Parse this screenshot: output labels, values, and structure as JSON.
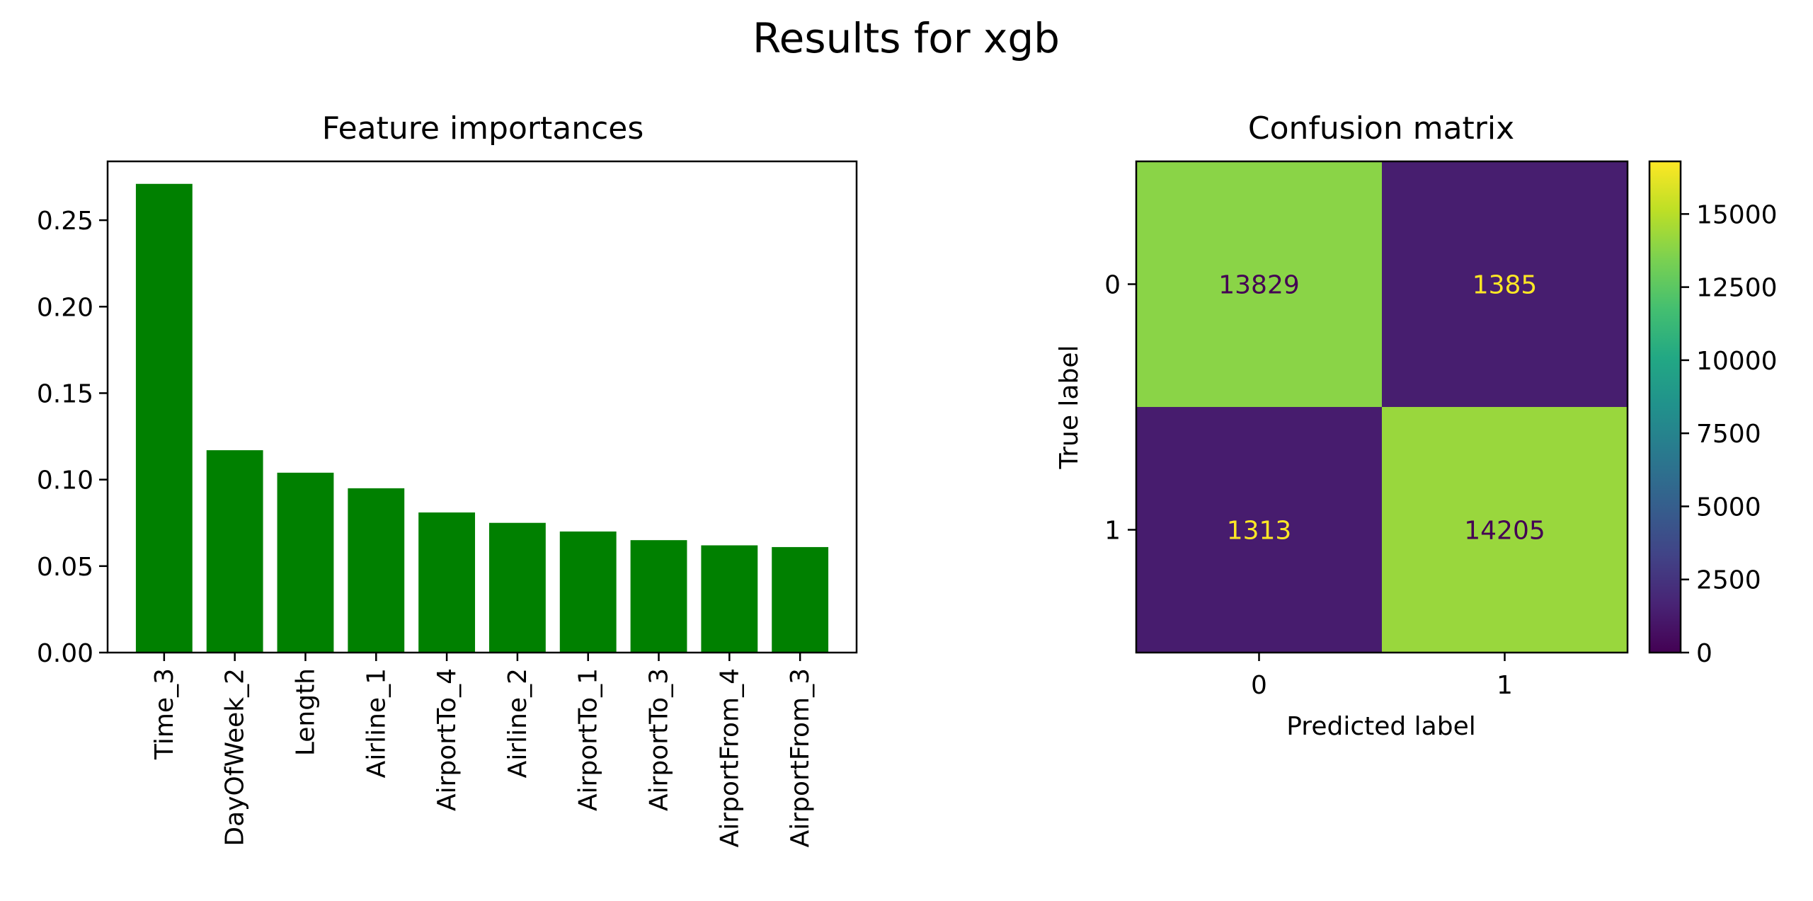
{
  "figure": {
    "suptitle": "Results for xgb"
  },
  "chart_data": [
    {
      "type": "bar",
      "title": "Feature importances",
      "xlabel": "",
      "ylabel": "",
      "categories": [
        "Time_3",
        "DayOfWeek_2",
        "Length",
        "Airline_1",
        "AirportTo_4",
        "Airline_2",
        "AirportTo_1",
        "AirportTo_3",
        "AirportFrom_4",
        "AirportFrom_3"
      ],
      "values": [
        0.271,
        0.117,
        0.104,
        0.095,
        0.081,
        0.075,
        0.07,
        0.065,
        0.062,
        0.061
      ],
      "ylim": [
        0,
        0.284
      ],
      "yticks": [
        0.0,
        0.05,
        0.1,
        0.15,
        0.2,
        0.25
      ],
      "ytick_labels": [
        "0.00",
        "0.05",
        "0.10",
        "0.15",
        "0.20",
        "0.25"
      ],
      "bar_color": "#008000",
      "grid": false,
      "legend": "none"
    },
    {
      "type": "heatmap",
      "title": "Confusion matrix",
      "xlabel": "Predicted label",
      "ylabel": "True label",
      "x_categories": [
        "0",
        "1"
      ],
      "y_categories": [
        "0",
        "1"
      ],
      "matrix": [
        [
          13829,
          1385
        ],
        [
          1313,
          14205
        ]
      ],
      "cell_labels": [
        [
          "13829",
          "1385"
        ],
        [
          "1313",
          "14205"
        ]
      ],
      "colormap": "viridis",
      "color_range": [
        0,
        16800
      ],
      "colorbar_ticks": [
        0,
        2500,
        5000,
        7500,
        10000,
        12500,
        15000
      ],
      "colorbar_tick_labels": [
        "0",
        "2500",
        "5000",
        "7500",
        "10000",
        "12500",
        "15000"
      ],
      "text_color_dark": "#440154",
      "text_color_light": "#fde725"
    }
  ]
}
